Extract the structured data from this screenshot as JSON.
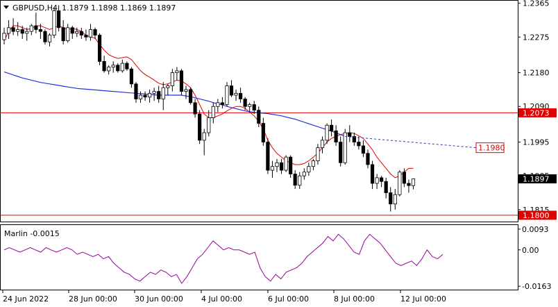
{
  "header": {
    "symbol": "GBPUSD,H4",
    "quote": "1.1879 1.1898 1.1869 1.1897"
  },
  "price_labels": {
    "resistance": "1.2073",
    "target": "1.1980",
    "support": "1.1800",
    "current": "1.1897"
  },
  "indicator": {
    "title": "Marlin -0.0015",
    "ticks": [
      "0.0093",
      "0.00",
      "-0.0163"
    ]
  },
  "chart_data": [
    {
      "type": "candlestick",
      "symbol": "GBPUSD",
      "timeframe": "H4",
      "y_ticks": [
        "1.2365",
        "1.2275",
        "1.2180",
        "1.2090",
        "1.1995",
        "1.1905",
        "1.1815"
      ],
      "ylim": [
        1.1785,
        1.237
      ],
      "x_ticks": [
        "24 Jun 2022",
        "28 Jun 00:00",
        "30 Jun 00:00",
        "4 Jul 00:00",
        "6 Jul 00:00",
        "8 Jul 00:00",
        "12 Jul 00:00"
      ],
      "horizontal_lines": [
        {
          "value": 1.2073,
          "color": "#e00000"
        },
        {
          "value": 1.18,
          "color": "#e00000"
        }
      ],
      "target_projection": {
        "value": 1.198,
        "color": "#2233dd"
      },
      "candles": [
        [
          1.2268,
          1.23,
          1.2255,
          1.2285
        ],
        [
          1.2285,
          1.232,
          1.227,
          1.23
        ],
        [
          1.23,
          1.2325,
          1.228,
          1.229
        ],
        [
          1.229,
          1.2315,
          1.2278,
          1.2295
        ],
        [
          1.2295,
          1.2305,
          1.227,
          1.2285
        ],
        [
          1.2285,
          1.23,
          1.2265,
          1.229
        ],
        [
          1.229,
          1.231,
          1.228,
          1.2305
        ],
        [
          1.2305,
          1.234,
          1.2285,
          1.2295
        ],
        [
          1.2295,
          1.231,
          1.227,
          1.229
        ],
        [
          1.229,
          1.2295,
          1.2255,
          1.2262
        ],
        [
          1.2262,
          1.2285,
          1.225,
          1.228
        ],
        [
          1.228,
          1.2355,
          1.2272,
          1.2345
        ],
        [
          1.2345,
          1.236,
          1.229,
          1.23
        ],
        [
          1.23,
          1.232,
          1.2255,
          1.2265
        ],
        [
          1.2265,
          1.231,
          1.226,
          1.23
        ],
        [
          1.23,
          1.2305,
          1.227,
          1.2285
        ],
        [
          1.2285,
          1.23,
          1.2275,
          1.229
        ],
        [
          1.229,
          1.23,
          1.227,
          1.228
        ],
        [
          1.228,
          1.2295,
          1.2265,
          1.2275
        ],
        [
          1.2275,
          1.231,
          1.2265,
          1.2295
        ],
        [
          1.2295,
          1.23,
          1.227,
          1.228
        ],
        [
          1.228,
          1.2285,
          1.22,
          1.221
        ],
        [
          1.221,
          1.2225,
          1.218,
          1.2185
        ],
        [
          1.2185,
          1.22,
          1.2175,
          1.2195
        ],
        [
          1.2195,
          1.221,
          1.218,
          1.22
        ],
        [
          1.22,
          1.2205,
          1.218,
          1.2185
        ],
        [
          1.2185,
          1.2215,
          1.218,
          1.2205
        ],
        [
          1.2205,
          1.221,
          1.2185,
          1.219
        ],
        [
          1.219,
          1.2195,
          1.214,
          1.215
        ],
        [
          1.215,
          1.2155,
          1.21,
          1.211
        ],
        [
          1.211,
          1.213,
          1.21,
          1.212
        ],
        [
          1.212,
          1.213,
          1.2105,
          1.2115
        ],
        [
          1.2115,
          1.2135,
          1.21,
          1.2125
        ],
        [
          1.2125,
          1.214,
          1.2105,
          1.213
        ],
        [
          1.213,
          1.2145,
          1.21,
          1.211
        ],
        [
          1.211,
          1.2155,
          1.208,
          1.214
        ],
        [
          1.214,
          1.215,
          1.212,
          1.2145
        ],
        [
          1.2145,
          1.219,
          1.213,
          1.218
        ],
        [
          1.218,
          1.2195,
          1.216,
          1.2185
        ],
        [
          1.2185,
          1.219,
          1.212,
          1.213
        ],
        [
          1.213,
          1.2145,
          1.211,
          1.2135
        ],
        [
          1.2135,
          1.214,
          1.2095,
          1.21
        ],
        [
          1.21,
          1.211,
          1.206,
          1.207
        ],
        [
          1.207,
          1.208,
          1.199,
          1.2
        ],
        [
          1.2,
          1.203,
          1.196,
          1.202
        ],
        [
          1.202,
          1.208,
          1.201,
          1.206
        ],
        [
          1.206,
          1.21,
          1.2045,
          1.209
        ],
        [
          1.209,
          1.211,
          1.2075,
          1.21
        ],
        [
          1.21,
          1.2115,
          1.2085,
          1.2095
        ],
        [
          1.2095,
          1.2155,
          1.209,
          1.2145
        ],
        [
          1.2145,
          1.216,
          1.2115,
          1.212
        ],
        [
          1.212,
          1.2135,
          1.2105,
          1.2125
        ],
        [
          1.2125,
          1.214,
          1.21,
          1.211
        ],
        [
          1.211,
          1.2115,
          1.208,
          1.209
        ],
        [
          1.209,
          1.21,
          1.2075,
          1.2095
        ],
        [
          1.2095,
          1.2105,
          1.207,
          1.208
        ],
        [
          1.208,
          1.209,
          1.2035,
          1.2045
        ],
        [
          1.2045,
          1.206,
          1.1985,
          1.1995
        ],
        [
          1.1995,
          1.2005,
          1.191,
          1.192
        ],
        [
          1.192,
          1.1945,
          1.19,
          1.193
        ],
        [
          1.193,
          1.195,
          1.1915,
          1.194
        ],
        [
          1.194,
          1.195,
          1.191,
          1.192
        ],
        [
          1.192,
          1.196,
          1.1915,
          1.1955
        ],
        [
          1.1955,
          1.196,
          1.19,
          1.191
        ],
        [
          1.191,
          1.192,
          1.187,
          1.188
        ],
        [
          1.188,
          1.1915,
          1.187,
          1.1905
        ],
        [
          1.1905,
          1.1925,
          1.1895,
          1.1915
        ],
        [
          1.1915,
          1.194,
          1.1905,
          1.193
        ],
        [
          1.193,
          1.195,
          1.192,
          1.1945
        ],
        [
          1.1945,
          1.199,
          1.1935,
          1.198
        ],
        [
          1.198,
          1.201,
          1.1965,
          1.2
        ],
        [
          1.2,
          1.2045,
          1.199,
          1.204
        ],
        [
          1.204,
          1.2055,
          1.201,
          1.2025
        ],
        [
          1.2025,
          1.204,
          1.1985,
          1.1995
        ],
        [
          1.1995,
          1.201,
          1.193,
          1.194
        ],
        [
          1.194,
          1.203,
          1.1935,
          1.202
        ],
        [
          1.202,
          1.204,
          1.1995,
          1.201
        ],
        [
          1.201,
          1.202,
          1.1985,
          1.1995
        ],
        [
          1.1995,
          1.201,
          1.1975,
          1.1985
        ],
        [
          1.1985,
          1.2,
          1.1955,
          1.1965
        ],
        [
          1.1965,
          1.1975,
          1.1925,
          1.1935
        ],
        [
          1.1935,
          1.1945,
          1.187,
          1.1885
        ],
        [
          1.1885,
          1.191,
          1.187,
          1.19
        ],
        [
          1.19,
          1.1905,
          1.1875,
          1.189
        ],
        [
          1.189,
          1.19,
          1.1845,
          1.186
        ],
        [
          1.186,
          1.1875,
          1.181,
          1.183
        ],
        [
          1.183,
          1.187,
          1.1815,
          1.1855
        ],
        [
          1.1855,
          1.192,
          1.185,
          1.1915
        ],
        [
          1.1915,
          1.1925,
          1.1875,
          1.1885
        ],
        [
          1.1885,
          1.1895,
          1.186,
          1.1879
        ],
        [
          1.1879,
          1.1898,
          1.1869,
          1.1897
        ]
      ],
      "series": [
        {
          "name": "red",
          "color": "#e00000",
          "values": [
            1.2265,
            1.229,
            1.2305,
            1.2305,
            1.23,
            1.2295,
            1.2298,
            1.2305,
            1.2305,
            1.23,
            1.2295,
            1.23,
            1.2305,
            1.23,
            1.2295,
            1.2298,
            1.2295,
            1.229,
            1.228,
            1.2275,
            1.2272,
            1.2255,
            1.224,
            1.2228,
            1.2222,
            1.2218,
            1.222,
            1.2222,
            1.2215,
            1.22,
            1.2185,
            1.2175,
            1.2168,
            1.216,
            1.2152,
            1.2148,
            1.215,
            1.2155,
            1.216,
            1.2158,
            1.215,
            1.214,
            1.212,
            1.2095,
            1.207,
            1.206,
            1.206,
            1.2065,
            1.207,
            1.2078,
            1.2085,
            1.209,
            1.209,
            1.2085,
            1.2075,
            1.2065,
            1.205,
            1.203,
            1.2,
            1.198,
            1.1965,
            1.1955,
            1.1945,
            1.194,
            1.1935,
            1.1935,
            1.1938,
            1.1945,
            1.1955,
            1.1965,
            1.198,
            1.1995,
            1.2005,
            1.201,
            1.2015,
            1.2018,
            1.202,
            1.2018,
            1.2012,
            1.2005,
            1.199,
            1.1975,
            1.1955,
            1.194,
            1.1925,
            1.191,
            1.19,
            1.1905,
            1.1915,
            1.1925,
            1.1925
          ]
        },
        {
          "name": "blue",
          "color": "#2233dd",
          "values": [
            1.2182,
            1.2178,
            1.2174,
            1.217,
            1.2166,
            1.2163,
            1.216,
            1.2157,
            1.2154,
            1.2152,
            1.215,
            1.2148,
            1.2146,
            1.2144,
            1.2142,
            1.214,
            1.2138,
            1.2137,
            1.2136,
            1.2135,
            1.2134,
            1.2133,
            1.2132,
            1.2131,
            1.213,
            1.2129,
            1.2128,
            1.2127,
            1.2126,
            1.2125,
            1.2124,
            1.2123,
            1.2122,
            1.2121,
            1.212,
            1.212,
            1.212,
            1.212,
            1.212,
            1.212,
            1.2118,
            1.2116,
            1.2113,
            1.211,
            1.2107,
            1.2104,
            1.21,
            1.2097,
            1.2094,
            1.209,
            1.2087,
            1.2084,
            1.2081,
            1.2078,
            1.2076,
            1.2074,
            1.2073,
            1.2072,
            1.2071,
            1.2069,
            1.2067,
            1.2065,
            1.2062,
            1.2059,
            1.2056,
            1.2052,
            1.2048,
            1.2044,
            1.204,
            1.2036,
            1.2032,
            1.2028,
            1.2024,
            1.202,
            1.2015,
            1.201
          ]
        }
      ]
    },
    {
      "type": "line",
      "name": "Marlin",
      "ylim": [
        -0.0175,
        0.0105
      ],
      "y_ticks": [
        0.0093,
        0.0,
        -0.0163
      ],
      "series": [
        {
          "name": "Marlin",
          "color": "#990099",
          "values": [
            0.0,
            0.001,
            0.0,
            -0.001,
            0.0,
            0.001,
            0.0,
            -0.001,
            0.001,
            0.0,
            -0.001,
            0.0,
            0.001,
            0.0,
            -0.002,
            -0.001,
            -0.002,
            -0.003,
            -0.002,
            -0.004,
            -0.003,
            -0.006,
            -0.008,
            -0.01,
            -0.011,
            -0.013,
            -0.014,
            -0.012,
            -0.01,
            -0.011,
            -0.009,
            -0.01,
            -0.012,
            -0.011,
            -0.015,
            -0.012,
            -0.008,
            -0.004,
            -0.002,
            0.001,
            0.004,
            0.002,
            0.0,
            0.001,
            0.0,
            0.0,
            -0.001,
            -0.002,
            -0.001,
            -0.008,
            -0.012,
            -0.014,
            -0.011,
            -0.013,
            -0.01,
            -0.009,
            -0.008,
            -0.006,
            -0.003,
            -0.001,
            0.001,
            0.003,
            0.006,
            0.004,
            0.007,
            0.005,
            0.002,
            -0.001,
            -0.002,
            0.004,
            0.007,
            0.005,
            0.003,
            0.0,
            -0.003,
            -0.006,
            -0.007,
            -0.006,
            -0.005,
            -0.007,
            -0.004,
            0.0,
            -0.003,
            -0.004,
            -0.002
          ]
        }
      ]
    }
  ]
}
